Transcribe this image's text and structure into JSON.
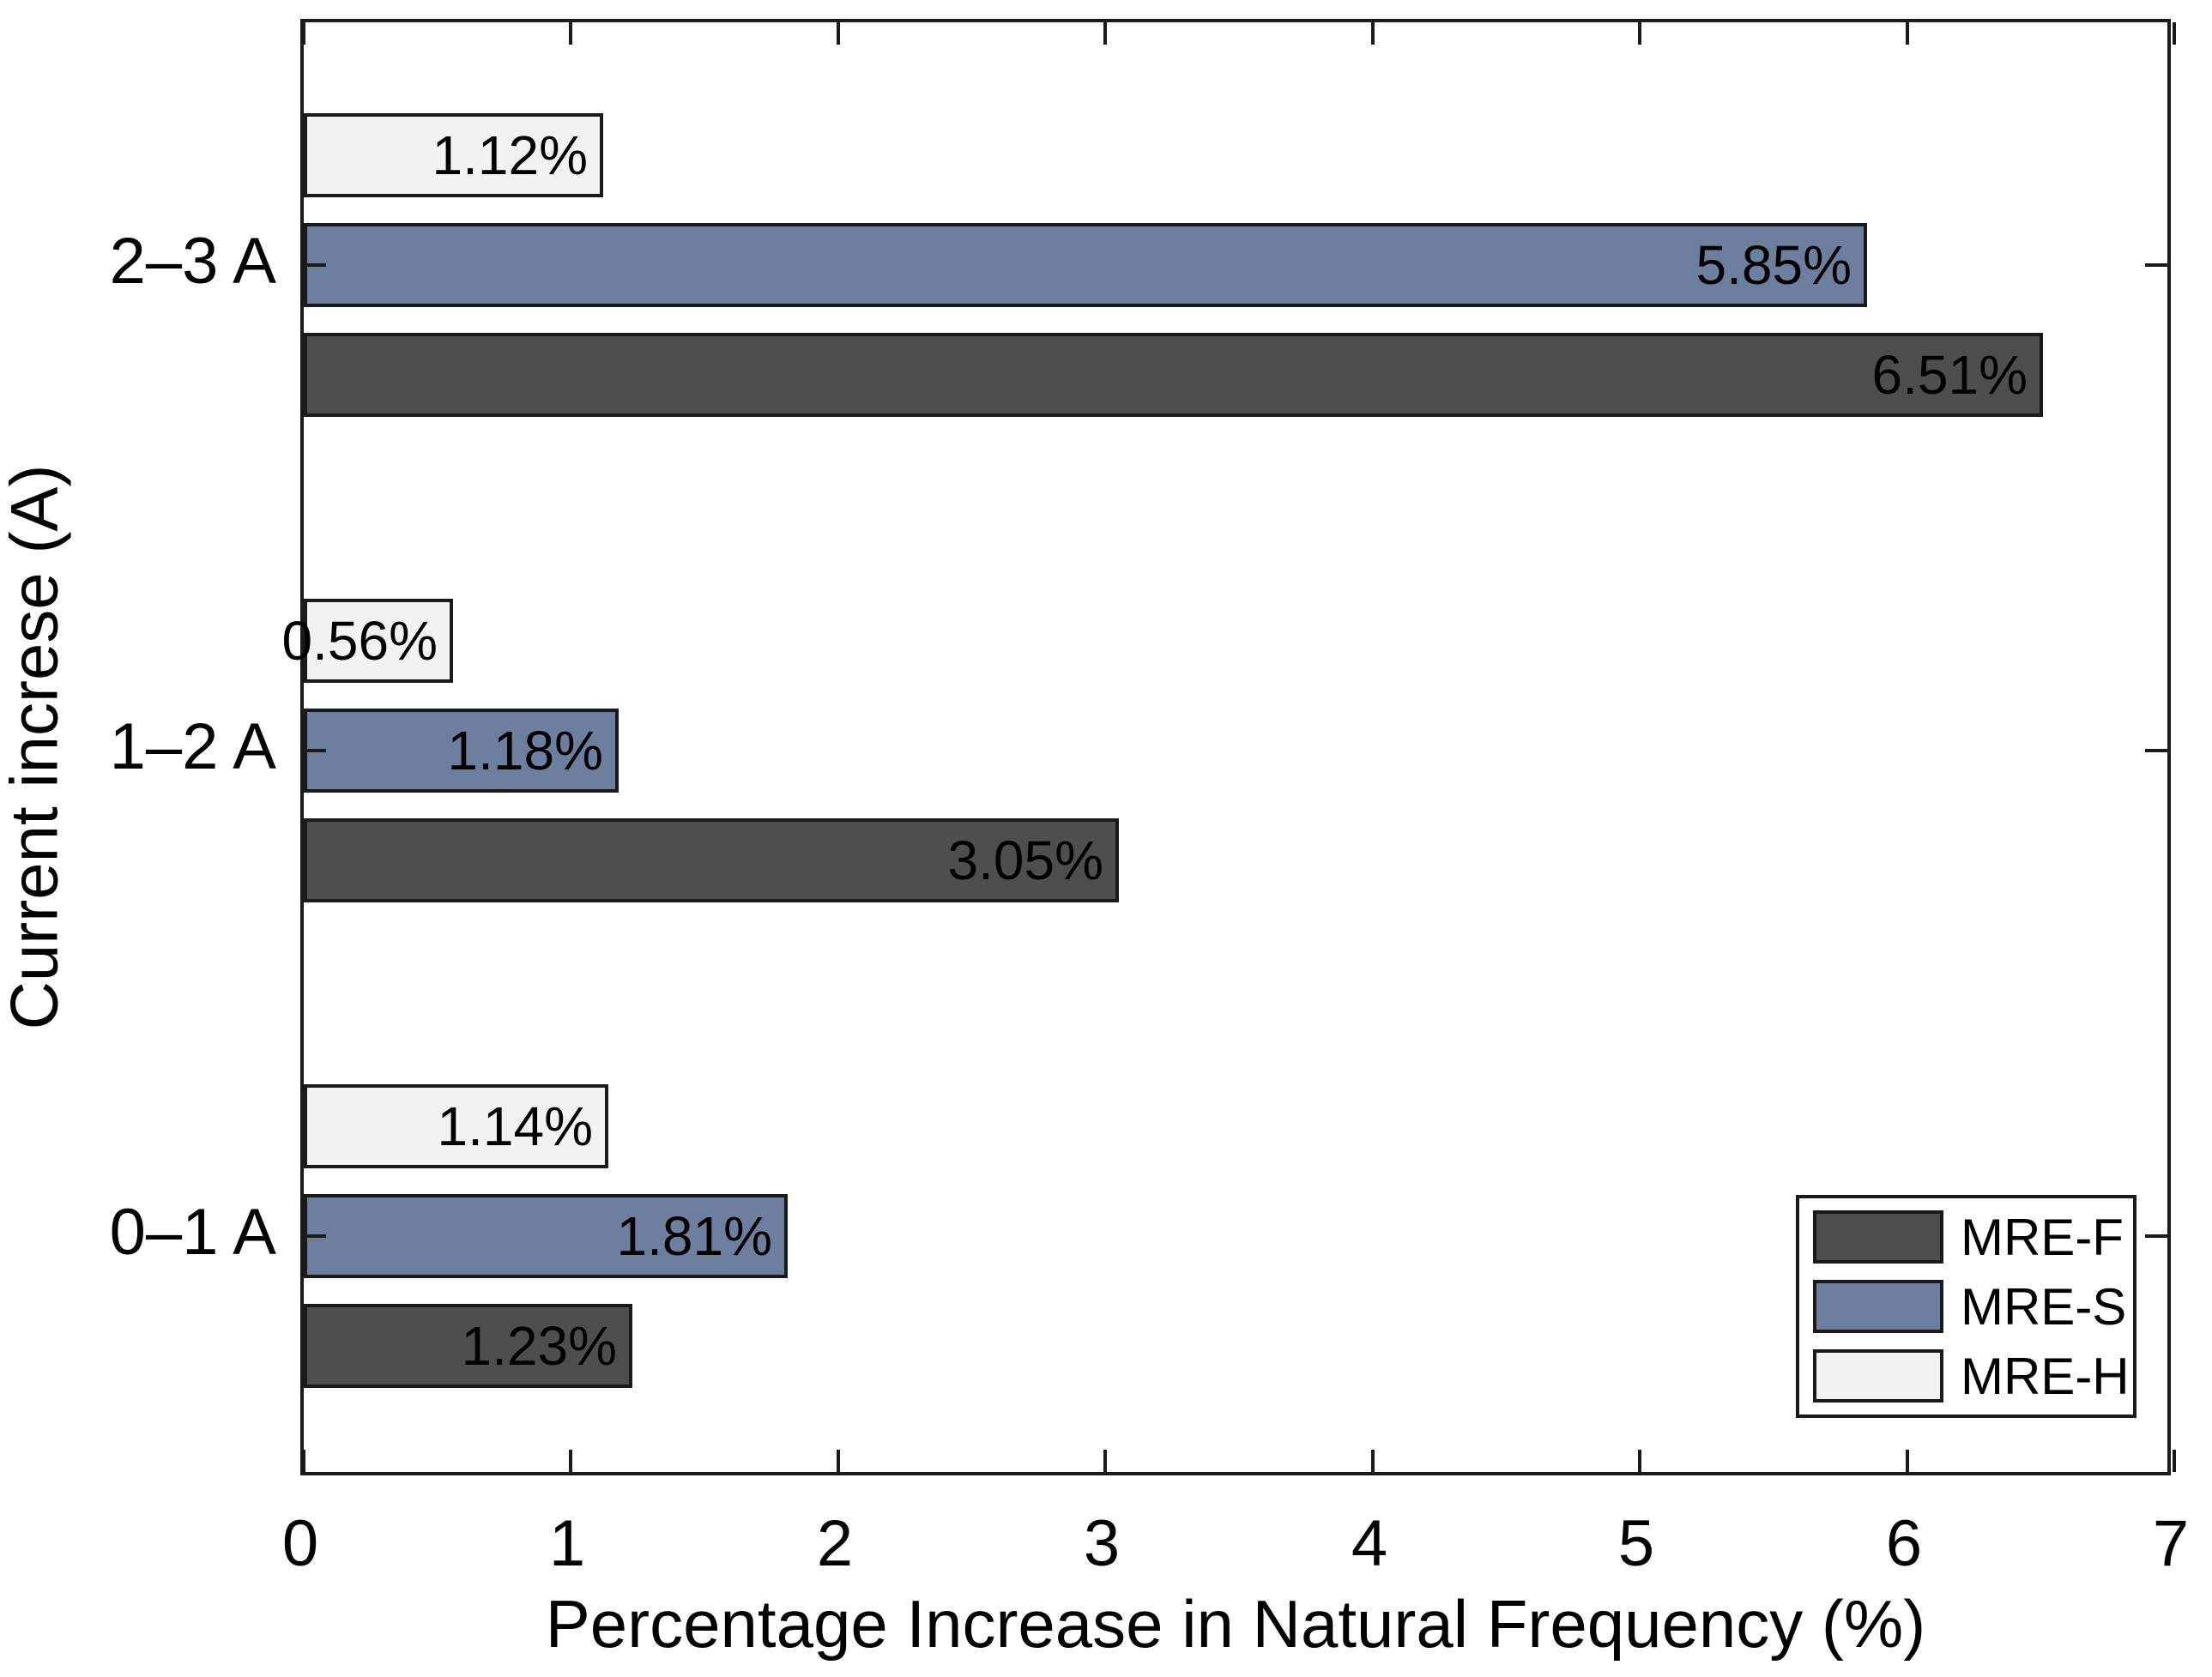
{
  "figure": {
    "background": "#ffffff",
    "frame_color": "#1a1a1a"
  },
  "chart_data": {
    "type": "bar",
    "orientation": "horizontal",
    "title": "",
    "xlabel": "Percentage Increase in Natural Frequency (%)",
    "ylabel": "Current increse (A)",
    "xlim": [
      0,
      7
    ],
    "xticks": [
      0,
      1,
      2,
      3,
      4,
      5,
      6,
      7
    ],
    "grid": false,
    "categories": [
      "0–1 A",
      "1–2 A",
      "2–3 A"
    ],
    "series": [
      {
        "name": "MRE-F",
        "color": "#4e4e4e",
        "values": [
          1.23,
          3.05,
          6.51
        ],
        "labels": [
          "1.23%",
          "3.05%",
          "6.51%"
        ]
      },
      {
        "name": "MRE-S",
        "color": "#6e7e9e",
        "values": [
          1.81,
          1.18,
          5.85
        ],
        "labels": [
          "1.81%",
          "1.18%",
          "5.85%"
        ]
      },
      {
        "name": "MRE-H",
        "color": "#f2f2f2",
        "values": [
          1.14,
          0.56,
          1.12
        ],
        "labels": [
          "1.14%",
          "0.56%",
          "1.12%"
        ]
      }
    ],
    "legend": {
      "position": "lower right",
      "entries": [
        "MRE-F",
        "MRE-S",
        "MRE-H"
      ]
    },
    "bar_border_color": "#1a1a1a",
    "value_label_color": "#000000"
  }
}
